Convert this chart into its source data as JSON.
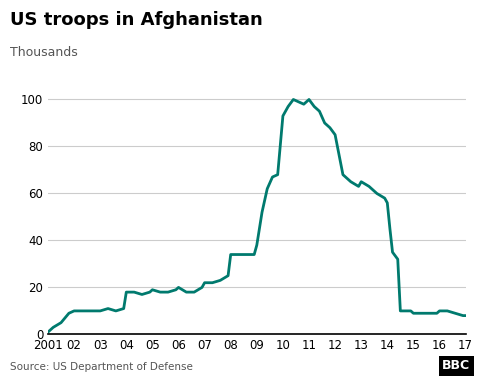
{
  "title": "US troops in Afghanistan",
  "ylabel": "Thousands",
  "source": "Source: US Department of Defense",
  "bbc_label": "BBC",
  "line_color": "#007A6E",
  "background_color": "#ffffff",
  "line_width": 2.0,
  "xlim": [
    2001,
    2017
  ],
  "ylim": [
    0,
    110
  ],
  "yticks": [
    0,
    20,
    40,
    60,
    80,
    100
  ],
  "xtick_labels": [
    "2001",
    "02",
    "03",
    "04",
    "05",
    "06",
    "07",
    "08",
    "09",
    "10",
    "11",
    "12",
    "13",
    "14",
    "15",
    "16",
    "17"
  ],
  "x": [
    2001.0,
    2001.2,
    2001.5,
    2001.8,
    2002.0,
    2002.3,
    2002.6,
    2002.9,
    2003.0,
    2003.3,
    2003.6,
    2003.9,
    2004.0,
    2004.3,
    2004.6,
    2004.9,
    2005.0,
    2005.3,
    2005.6,
    2005.9,
    2006.0,
    2006.3,
    2006.6,
    2006.9,
    2007.0,
    2007.3,
    2007.6,
    2007.9,
    2008.0,
    2008.3,
    2008.6,
    2008.9,
    2009.0,
    2009.2,
    2009.4,
    2009.6,
    2009.8,
    2010.0,
    2010.2,
    2010.4,
    2010.6,
    2010.8,
    2011.0,
    2011.2,
    2011.4,
    2011.6,
    2011.8,
    2012.0,
    2012.3,
    2012.6,
    2012.9,
    2013.0,
    2013.3,
    2013.6,
    2013.9,
    2014.0,
    2014.1,
    2014.2,
    2014.4,
    2014.5,
    2014.7,
    2014.9,
    2015.0,
    2015.3,
    2015.6,
    2015.9,
    2016.0,
    2016.3,
    2016.6,
    2016.9,
    2017.0
  ],
  "y": [
    1,
    3,
    5,
    9,
    10,
    10,
    10,
    10,
    10,
    11,
    10,
    11,
    18,
    18,
    17,
    18,
    19,
    18,
    18,
    19,
    20,
    18,
    18,
    20,
    22,
    22,
    23,
    25,
    34,
    34,
    34,
    34,
    38,
    52,
    62,
    67,
    68,
    93,
    97,
    100,
    99,
    98,
    100,
    97,
    95,
    90,
    88,
    85,
    68,
    65,
    63,
    65,
    63,
    60,
    58,
    56,
    45,
    35,
    32,
    10,
    10,
    10,
    9,
    9,
    9,
    9,
    10,
    10,
    9,
    8,
    8
  ]
}
